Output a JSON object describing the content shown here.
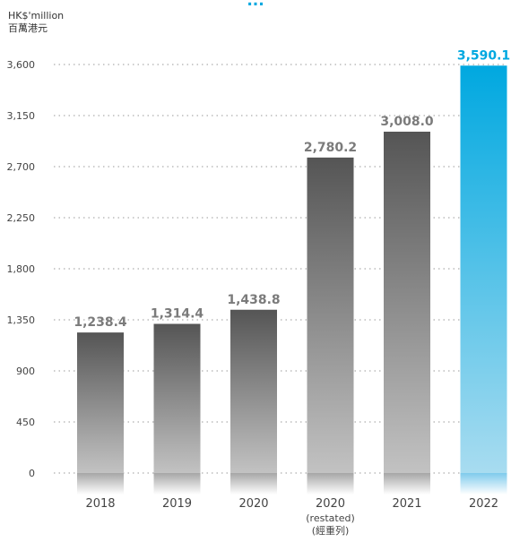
{
  "chart_data": {
    "type": "bar",
    "title": "...",
    "ylabel": [
      "HK$'million",
      "百萬港元"
    ],
    "categories": [
      "2018",
      "2019",
      "2020",
      "2020",
      "2021",
      "2022"
    ],
    "category_notes": [
      "",
      "",
      "",
      "(restated)\n(經重列)",
      "",
      ""
    ],
    "values": [
      1238.4,
      1314.4,
      1438.8,
      2780.2,
      3008.0,
      3590.1
    ],
    "value_labels": [
      "1,238.4",
      "1,314.4",
      "1,438.8",
      "2,780.2",
      "3,008.0",
      "3,590.1"
    ],
    "highlight_index": 5,
    "yticks": [
      0,
      450,
      900,
      1350,
      1800,
      2250,
      2700,
      3150,
      3600
    ],
    "ytick_labels": [
      "0",
      "450",
      "900",
      "1,350",
      "1,800",
      "2,250",
      "2,700",
      "3,150",
      "3,600"
    ],
    "ylim": [
      0,
      3600
    ],
    "grid": true,
    "colors": {
      "bar_top": "#555555",
      "bar_bottom": "#c2c2c2",
      "highlight_top": "#00a8e0",
      "highlight_bottom": "#a8dcf0",
      "label": "#7b7b7b",
      "highlight_label": "#00a8e0",
      "grid": "#bbbbbb"
    }
  }
}
